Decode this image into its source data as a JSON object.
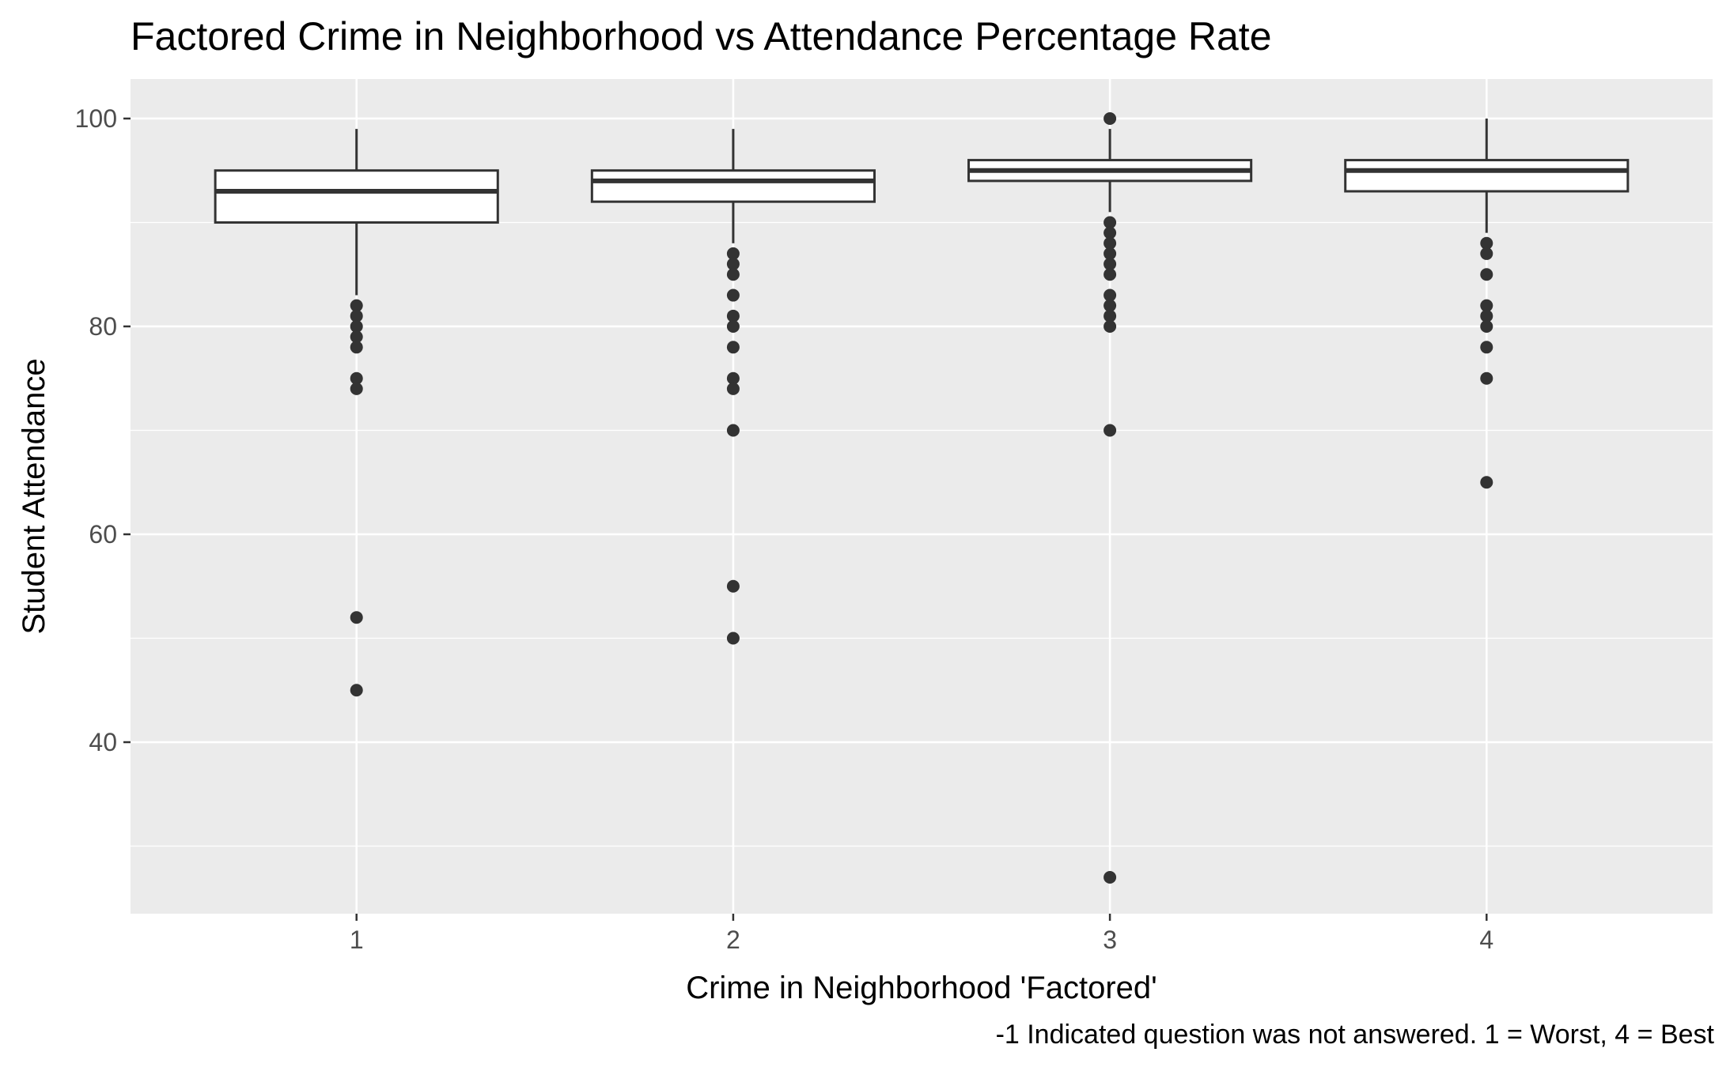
{
  "chart_data": {
    "type": "boxplot",
    "title": "Factored Crime in Neighborhood vs Attendance Percentage Rate",
    "xlabel": "Crime in Neighborhood 'Factored'",
    "ylabel": "Student Attendance",
    "caption": "-1 Indicated question was not answered. 1 = Worst, 4 = Best",
    "categories": [
      "1",
      "2",
      "3",
      "4"
    ],
    "ylim": [
      23.5,
      103.8
    ],
    "y_ticks": [
      40,
      60,
      80,
      100
    ],
    "y_tick_labels": [
      "40",
      "60",
      "80",
      "100"
    ],
    "grid": true,
    "legend": "none",
    "colors": {
      "panel_background": "#ebebeb",
      "grid_major": "#ffffff",
      "box_fill": "#ffffff",
      "box_line": "#333333",
      "outlier": "#333333"
    },
    "boxes": [
      {
        "category": "1",
        "lower_whisker": 83,
        "q1": 90,
        "median": 93,
        "q3": 95,
        "upper_whisker": 99,
        "outliers": [
          82,
          81,
          80,
          79,
          78,
          75,
          74,
          52,
          45
        ]
      },
      {
        "category": "2",
        "lower_whisker": 88,
        "q1": 92,
        "median": 94,
        "q3": 95,
        "upper_whisker": 99,
        "outliers": [
          87,
          86,
          85,
          83,
          81,
          80,
          78,
          75,
          74,
          70,
          55,
          50
        ]
      },
      {
        "category": "3",
        "lower_whisker": 91,
        "q1": 94,
        "median": 95,
        "q3": 96,
        "upper_whisker": 99,
        "outliers": [
          100,
          90,
          89,
          88,
          87,
          86,
          85,
          83,
          82,
          81,
          80,
          70,
          27
        ]
      },
      {
        "category": "4",
        "lower_whisker": 89,
        "q1": 93,
        "median": 95,
        "q3": 96,
        "upper_whisker": 100,
        "outliers": [
          88,
          87,
          85,
          82,
          81,
          80,
          78,
          75,
          65
        ]
      }
    ]
  }
}
